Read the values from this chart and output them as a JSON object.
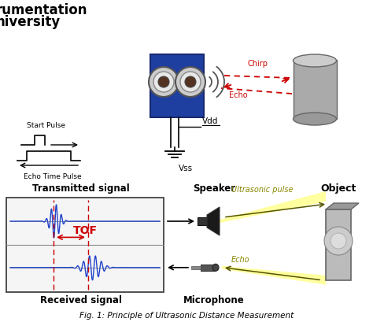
{
  "fig_caption": "Fig. 1: Principle of Ultrasonic Distance Measurement",
  "background_color": "#ffffff",
  "top_labels": {
    "chirp": "Chirp",
    "echo": "Echo",
    "vdd": "Vdd",
    "vss": "Vss",
    "start_pulse": "Start Pulse",
    "echo_time": "Echo Time Pulse"
  },
  "bottom_labels": {
    "transmitted": "Transmitted signal",
    "received": "Received signal",
    "speaker": "Speaker",
    "microphone": "Microphone",
    "object": "Object",
    "ultrasonic": "Ultrasonic pulse",
    "echo": "Echo",
    "tof": "TOF"
  },
  "colors": {
    "red": "#cc0000",
    "blue": "#3344bb",
    "dark_gray": "#444444",
    "black": "#000000",
    "white": "#ffffff",
    "sensor_blue": "#1e3fa0",
    "gray_cyl": "#999999",
    "tof_red": "#cc2222",
    "yellow_beam": "#ffffa0",
    "obj_gray": "#aaaaaa"
  }
}
